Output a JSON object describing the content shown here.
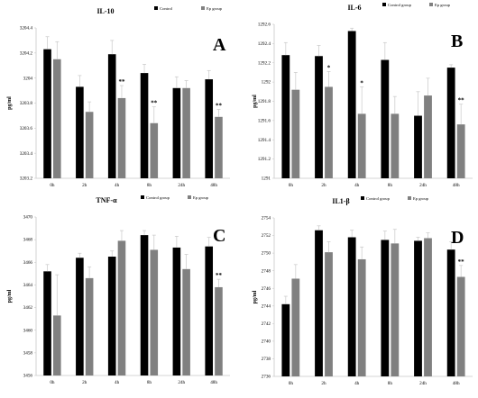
{
  "colors": {
    "control": "#000000",
    "treatment": "#808080",
    "axis": "#c8c8c8",
    "text": "#000000"
  },
  "chart_data": [
    {
      "type": "bar",
      "panel_letter": "A",
      "title": "IL-10",
      "ylabel": "pg/ml",
      "categories": [
        "0h",
        "2h",
        "4h",
        "8h",
        "24h",
        "48h"
      ],
      "series": [
        {
          "name": "Control",
          "values": [
            3204.23,
            3203.93,
            3204.19,
            3204.04,
            3203.92,
            3203.99
          ],
          "errors": [
            0.1,
            0.09,
            0.11,
            0.07,
            0.09,
            0.07
          ]
        },
        {
          "name": "Ep group",
          "values": [
            3204.15,
            3203.73,
            3203.84,
            3203.64,
            3203.92,
            3203.69
          ],
          "errors": [
            0.14,
            0.08,
            0.1,
            0.13,
            0.06,
            0.06
          ]
        }
      ],
      "significance": [
        null,
        null,
        "**",
        "**",
        null,
        "**"
      ],
      "ylim": [
        3203.2,
        3204.4
      ],
      "yticks": [
        3203.2,
        3203.4,
        3203.6,
        3203.8,
        3204,
        3204.2,
        3204.4
      ],
      "ytick_labels": [
        "3203.2",
        "3203.4",
        "3203.6",
        "3203.8",
        "3204",
        "3204.2",
        "3204.4"
      ]
    },
    {
      "type": "bar",
      "panel_letter": "B",
      "title": "IL-6",
      "ylabel": "pg/ml",
      "categories": [
        "0h",
        "2h",
        "4h",
        "8h",
        "24h",
        "48h"
      ],
      "series": [
        {
          "name": "Control group",
          "values": [
            1292.28,
            1292.27,
            1292.53,
            1292.23,
            1291.65,
            1292.15
          ],
          "errors": [
            0.13,
            0.11,
            0.03,
            0.18,
            0.25,
            0.03
          ]
        },
        {
          "name": "Ep group",
          "values": [
            1291.92,
            1291.95,
            1291.67,
            1291.67,
            1291.86,
            1291.56
          ],
          "errors": [
            0.18,
            0.16,
            0.28,
            0.18,
            0.18,
            0.21
          ]
        }
      ],
      "significance": [
        null,
        "*",
        "*",
        null,
        null,
        "**"
      ],
      "ylim": [
        1291,
        1292.6
      ],
      "yticks": [
        1291,
        1291.2,
        1291.4,
        1291.6,
        1291.8,
        1292,
        1292.2,
        1292.4,
        1292.6
      ],
      "ytick_labels": [
        "1291",
        "1291.2",
        "1291.4",
        "1291.6",
        "1291.8",
        "1292",
        "1292.2",
        "1292.4",
        "1292.6"
      ]
    },
    {
      "type": "bar",
      "panel_letter": "C",
      "title": "TNF-α",
      "ylabel": "pg/ml",
      "categories": [
        "0h",
        "2h",
        "4h",
        "8h",
        "24h",
        "48h"
      ],
      "series": [
        {
          "name": "Control group",
          "values": [
            3465.2,
            3466.4,
            3466.5,
            3468.4,
            3467.3,
            3467.4
          ],
          "errors": [
            0.6,
            0.4,
            0.5,
            0.4,
            1.0,
            0.8
          ]
        },
        {
          "name": "Ep group",
          "values": [
            3461.3,
            3464.6,
            3467.9,
            3467.1,
            3465.4,
            3463.8
          ],
          "errors": [
            3.6,
            1.0,
            0.9,
            1.3,
            1.3,
            0.7
          ]
        }
      ],
      "significance": [
        null,
        null,
        null,
        null,
        null,
        "**"
      ],
      "ylim": [
        3456,
        3470
      ],
      "yticks": [
        3456,
        3458,
        3460,
        3462,
        3464,
        3466,
        3468,
        3470
      ],
      "ytick_labels": [
        "3456",
        "3458",
        "3460",
        "3462",
        "3464",
        "3466",
        "3468",
        "3470"
      ]
    },
    {
      "type": "bar",
      "panel_letter": "D",
      "title": "IL1-β",
      "ylabel": "pg/ml",
      "categories": [
        "0h",
        "2h",
        "4h",
        "8h",
        "24h",
        "48h"
      ],
      "series": [
        {
          "name": "Control group",
          "values": [
            2744.2,
            2752.6,
            2751.8,
            2751.5,
            2751.4,
            2750.4
          ],
          "errors": [
            0.9,
            0.5,
            0.8,
            1.0,
            0.4,
            0.9
          ]
        },
        {
          "name": "Ep group",
          "values": [
            2747.1,
            2750.1,
            2749.3,
            2751.1,
            2751.7,
            2747.3
          ],
          "errors": [
            1.6,
            1.2,
            1.4,
            1.6,
            0.6,
            1.3
          ]
        }
      ],
      "significance": [
        null,
        null,
        null,
        null,
        null,
        "**"
      ],
      "ylim": [
        2736,
        2754
      ],
      "yticks": [
        2736,
        2738,
        2740,
        2742,
        2744,
        2746,
        2748,
        2750,
        2752,
        2754
      ],
      "ytick_labels": [
        "2736",
        "2738",
        "2740",
        "2742",
        "2744",
        "2746",
        "2748",
        "2750",
        "2752",
        "2754"
      ]
    }
  ]
}
